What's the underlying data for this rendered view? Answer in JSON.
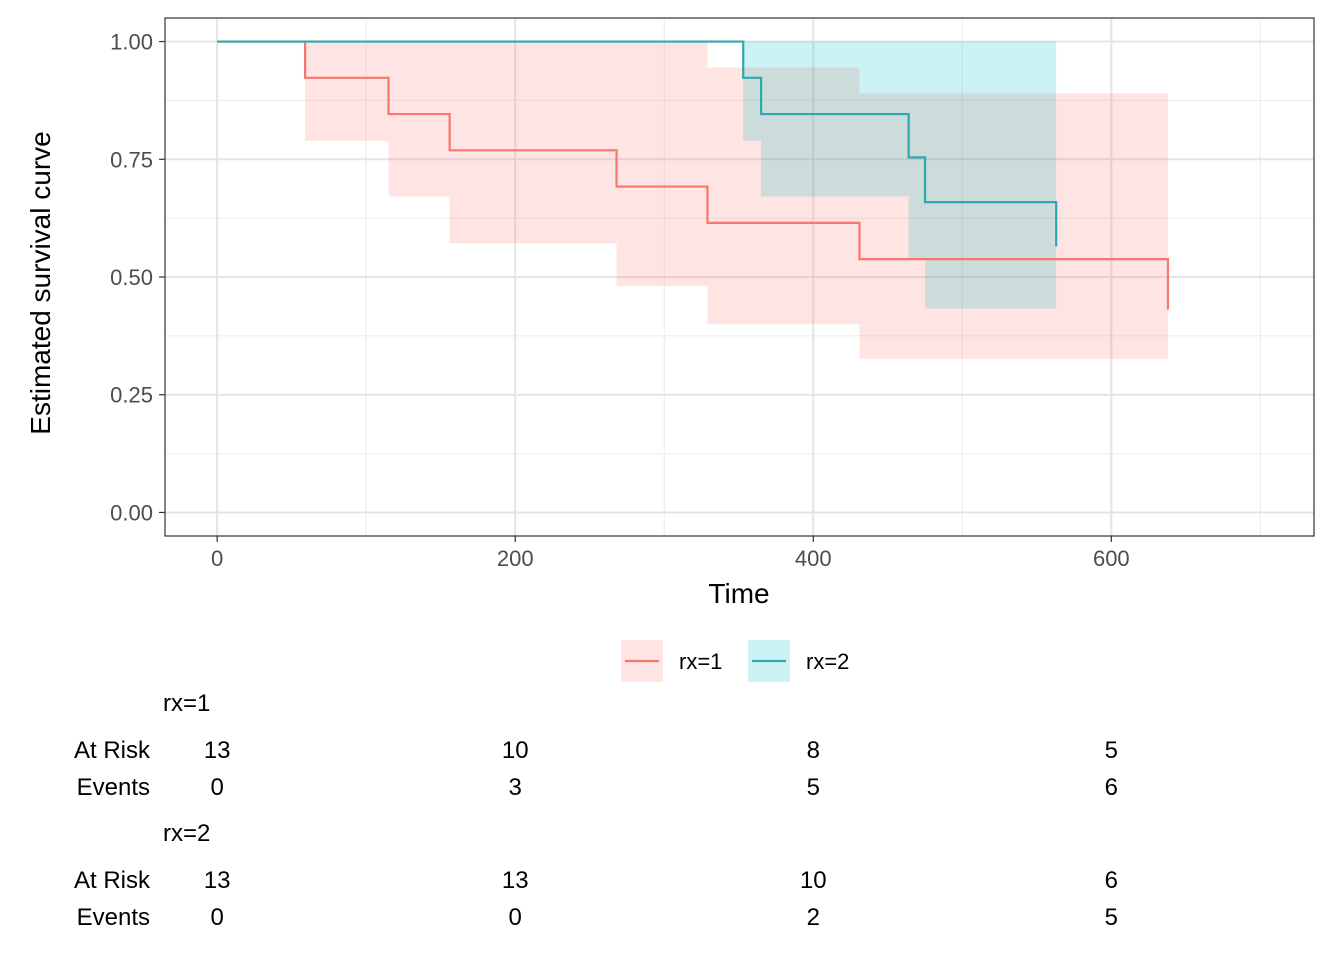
{
  "chart_data": {
    "type": "line",
    "xlabel": "Time",
    "ylabel": "Estimated survival curve",
    "xlim": [
      -35,
      736
    ],
    "ylim": [
      -0.05,
      1.05
    ],
    "x_ticks": [
      0,
      200,
      400,
      600
    ],
    "x_tick_labels": [
      "0",
      "200",
      "400",
      "600"
    ],
    "y_ticks": [
      0,
      0.25,
      0.5,
      0.75,
      1.0
    ],
    "y_tick_labels": [
      "0.00",
      "0.25",
      "0.50",
      "0.75",
      "1.00"
    ],
    "grid": true,
    "legend_placement": "bottom",
    "series": [
      {
        "name": "rx=1",
        "color": "#F8766D",
        "fill_color": "#F8766D",
        "steps": [
          {
            "x": 0,
            "y": 1.0,
            "lower": 1.0,
            "upper": 1.0
          },
          {
            "x": 59,
            "y": 0.923,
            "lower": 0.789,
            "upper": 1.0
          },
          {
            "x": 115,
            "y": 0.846,
            "lower": 0.671,
            "upper": 1.0
          },
          {
            "x": 156,
            "y": 0.769,
            "lower": 0.572,
            "upper": 1.0
          },
          {
            "x": 268,
            "y": 0.692,
            "lower": 0.481,
            "upper": 1.0
          },
          {
            "x": 329,
            "y": 0.615,
            "lower": 0.4,
            "upper": 0.945
          },
          {
            "x": 431,
            "y": 0.538,
            "lower": 0.326,
            "upper": 0.89
          }
        ],
        "end_x": 638,
        "end_y": 0.431
      },
      {
        "name": "rx=2",
        "color": "#00BFC4",
        "line_color": "#2CA9AE",
        "fill_color": "#00BFC4",
        "steps": [
          {
            "x": 0,
            "y": 1.0,
            "lower": 1.0,
            "upper": 1.0
          },
          {
            "x": 353,
            "y": 0.923,
            "lower": 0.789,
            "upper": 1.0
          },
          {
            "x": 365,
            "y": 0.846,
            "lower": 0.671,
            "upper": 1.0
          },
          {
            "x": 464,
            "y": 0.754,
            "lower": 0.54,
            "upper": 1.0
          },
          {
            "x": 475,
            "y": 0.659,
            "lower": 0.433,
            "upper": 1.0
          }
        ],
        "end_x": 563,
        "end_y": 0.565
      }
    ],
    "risk_table": {
      "time_points": [
        0,
        200,
        400,
        600
      ],
      "row_labels": {
        "at_risk": "At Risk",
        "events": "Events"
      },
      "groups": [
        {
          "label": "rx=1",
          "at_risk": [
            "13",
            "10",
            "8",
            "5"
          ],
          "events": [
            "0",
            "3",
            "5",
            "6"
          ]
        },
        {
          "label": "rx=2",
          "at_risk": [
            "13",
            "13",
            "10",
            "6"
          ],
          "events": [
            "0",
            "0",
            "2",
            "5"
          ]
        }
      ]
    }
  }
}
